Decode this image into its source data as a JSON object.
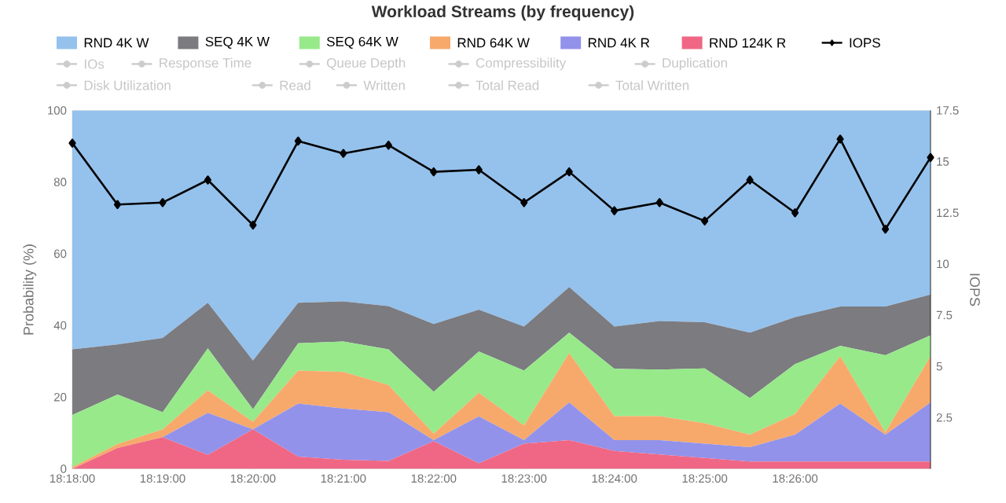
{
  "chart_data": {
    "type": "area",
    "title": "Workload Streams (by frequency)",
    "ylabel": "Probability (%)",
    "y2label": "IOPS",
    "x": [
      18.3,
      18.308333,
      18.316667,
      18.325,
      18.333333,
      18.341667,
      18.35,
      18.358333,
      18.366667,
      18.375,
      18.383333,
      18.391667,
      18.4,
      18.408333,
      18.416667,
      18.425,
      18.433333,
      18.441667,
      18.45,
      18.458333
    ],
    "xlim": [
      18.3,
      18.458333
    ],
    "xticks": [
      {
        "value": 18.3,
        "label": "18:18:00"
      },
      {
        "value": 18.316667,
        "label": "18:19:00"
      },
      {
        "value": 18.333333,
        "label": "18:20:00"
      },
      {
        "value": 18.35,
        "label": "18:21:00"
      },
      {
        "value": 18.366667,
        "label": "18:22:00"
      },
      {
        "value": 18.383333,
        "label": "18:23:00"
      },
      {
        "value": 18.4,
        "label": "18:24:00"
      },
      {
        "value": 18.416667,
        "label": "18:25:00"
      },
      {
        "value": 18.433333,
        "label": "18:26:00"
      }
    ],
    "ylim": [
      0,
      100
    ],
    "yticks": [
      0,
      20,
      40,
      60,
      80,
      100
    ],
    "y2lim": [
      0,
      17.5
    ],
    "y2ticks": [
      2.5,
      5,
      7.5,
      10,
      12.5,
      15,
      17.5
    ],
    "stacked": true,
    "grid": "y",
    "legend": "top",
    "series": [
      {
        "name": "RND 124K R",
        "color": "#ef6785",
        "values": [
          0,
          5.8,
          8.8,
          3.9,
          11,
          3.4,
          2.5,
          2.2,
          7.7,
          1.5,
          7,
          8,
          5,
          4,
          3,
          2,
          2,
          2,
          2,
          2
        ]
      },
      {
        "name": "RND 4K R",
        "color": "#9292ea",
        "values": [
          0,
          0,
          0,
          11.7,
          0,
          14.8,
          14.3,
          13.6,
          0.3,
          13.1,
          1,
          10.5,
          3,
          4,
          4,
          4,
          7.5,
          16.2,
          7.5,
          16.5
        ]
      },
      {
        "name": "RND 64K W",
        "color": "#f7a96b",
        "values": [
          0.5,
          1.1,
          2.2,
          6.3,
          2.1,
          9.2,
          10.2,
          7.6,
          1.8,
          6.6,
          4.1,
          13.8,
          6.7,
          6.7,
          5.7,
          3.5,
          5.8,
          13.2,
          0.7,
          12.9
        ]
      },
      {
        "name": "SEQ 64K W",
        "color": "#97e98a",
        "values": [
          14.5,
          13.8,
          4.8,
          11.7,
          3.5,
          7.6,
          8.5,
          9.9,
          11.7,
          11.5,
          15.3,
          5.7,
          13.2,
          13,
          15.3,
          10.2,
          13.9,
          2.9,
          21.5,
          5.8
        ]
      },
      {
        "name": "SEQ 4K W",
        "color": "#7b7b80",
        "values": [
          18.3,
          14,
          20.7,
          12.7,
          13.6,
          11.3,
          11.2,
          12.1,
          18.9,
          11.7,
          12.3,
          12.7,
          11.8,
          13.5,
          12.9,
          18.3,
          13.1,
          11,
          13.6,
          11.4
        ]
      },
      {
        "name": "RND 4K W",
        "color": "#95c2ec",
        "values": [
          66.7,
          65.3,
          63.5,
          53.7,
          69.8,
          53.7,
          53.3,
          54.6,
          59.6,
          55.6,
          60.3,
          49.3,
          60.3,
          58.8,
          59.1,
          62,
          57.7,
          54.7,
          54.7,
          51.4
        ]
      },
      {
        "name": "IOPS",
        "type": "line",
        "axis": "y2",
        "marker": "diamond",
        "color": "#000000",
        "values": [
          15.9,
          12.9,
          13.0,
          14.1,
          11.9,
          16.0,
          15.4,
          15.8,
          14.5,
          14.6,
          13.0,
          14.5,
          12.6,
          13.0,
          12.1,
          14.1,
          12.5,
          16.1,
          11.7,
          15.2
        ]
      },
      {
        "name": "IOs",
        "type": "line",
        "axis": "y2",
        "marker": "circle",
        "color": "#cccccc",
        "values": [
          null,
          null,
          null,
          null,
          null,
          null,
          null,
          null,
          null,
          null,
          null,
          null,
          null,
          null,
          null,
          null,
          null,
          null,
          null,
          null
        ]
      },
      {
        "name": "Response Time",
        "type": "line",
        "axis": "y2",
        "marker": "circle",
        "color": "#cccccc",
        "values": [
          null,
          null,
          null,
          null,
          null,
          null,
          null,
          null,
          null,
          null,
          null,
          null,
          null,
          null,
          null,
          null,
          null,
          null,
          null,
          null
        ]
      },
      {
        "name": "Queue Depth",
        "type": "line",
        "axis": "y2",
        "marker": "circle",
        "color": "#cccccc",
        "values": [
          null,
          null,
          null,
          null,
          null,
          null,
          null,
          null,
          null,
          null,
          null,
          null,
          null,
          null,
          null,
          null,
          null,
          null,
          null,
          null
        ]
      },
      {
        "name": "Compressibility",
        "type": "line",
        "axis": "y2",
        "marker": "circle",
        "color": "#cccccc",
        "values": [
          null,
          null,
          null,
          null,
          null,
          null,
          null,
          null,
          null,
          null,
          null,
          null,
          null,
          null,
          null,
          null,
          null,
          null,
          null,
          null
        ]
      },
      {
        "name": "Duplication",
        "type": "line",
        "axis": "y2",
        "marker": "circle",
        "color": "#cccccc",
        "values": [
          null,
          null,
          null,
          null,
          null,
          null,
          null,
          null,
          null,
          null,
          null,
          null,
          null,
          null,
          null,
          null,
          null,
          null,
          null,
          null
        ]
      },
      {
        "name": "Disk Utilization",
        "type": "line",
        "axis": "y2",
        "marker": "circle",
        "color": "#cccccc",
        "values": [
          null,
          null,
          null,
          null,
          null,
          null,
          null,
          null,
          null,
          null,
          null,
          null,
          null,
          null,
          null,
          null,
          null,
          null,
          null,
          null
        ]
      },
      {
        "name": "Read",
        "type": "line",
        "axis": "y2",
        "marker": "circle",
        "color": "#cccccc",
        "values": [
          null,
          null,
          null,
          null,
          null,
          null,
          null,
          null,
          null,
          null,
          null,
          null,
          null,
          null,
          null,
          null,
          null,
          null,
          null,
          null
        ]
      },
      {
        "name": "Written",
        "type": "line",
        "axis": "y2",
        "marker": "circle",
        "color": "#cccccc",
        "values": [
          null,
          null,
          null,
          null,
          null,
          null,
          null,
          null,
          null,
          null,
          null,
          null,
          null,
          null,
          null,
          null,
          null,
          null,
          null,
          null
        ]
      },
      {
        "name": "Total Read",
        "type": "line",
        "axis": "y2",
        "marker": "circle",
        "color": "#cccccc",
        "values": [
          null,
          null,
          null,
          null,
          null,
          null,
          null,
          null,
          null,
          null,
          null,
          null,
          null,
          null,
          null,
          null,
          null,
          null,
          null,
          null
        ]
      },
      {
        "name": "Total Written",
        "type": "line",
        "axis": "y2",
        "marker": "circle",
        "color": "#cccccc",
        "values": [
          null,
          null,
          null,
          null,
          null,
          null,
          null,
          null,
          null,
          null,
          null,
          null,
          null,
          null,
          null,
          null,
          null,
          null,
          null,
          null
        ]
      }
    ]
  }
}
